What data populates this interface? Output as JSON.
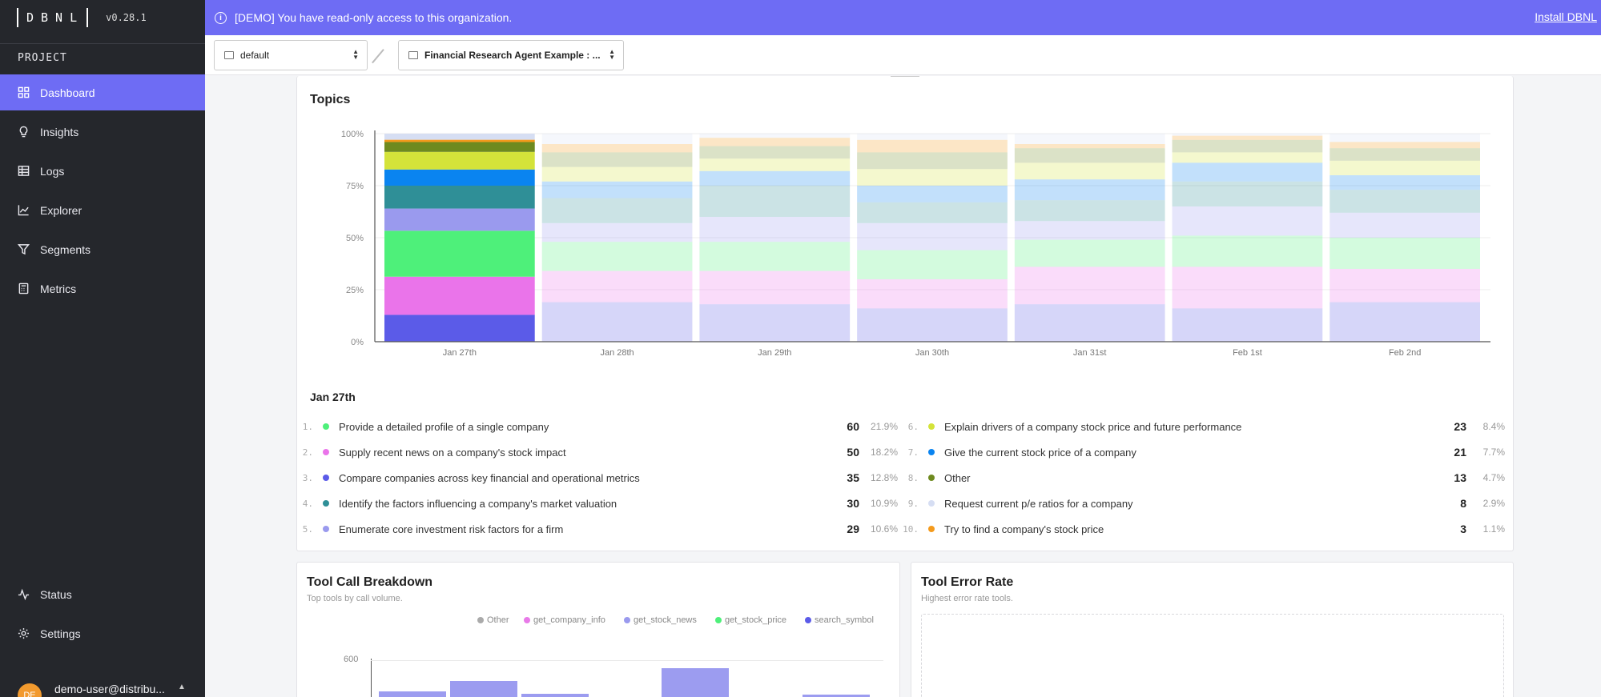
{
  "app": {
    "logo": "DBNL",
    "version": "v0.28.1"
  },
  "sidebar": {
    "section": "PROJECT",
    "items": [
      {
        "label": "Dashboard",
        "icon": "dashboard-icon",
        "active": true
      },
      {
        "label": "Insights",
        "icon": "lightbulb-icon"
      },
      {
        "label": "Logs",
        "icon": "table-icon"
      },
      {
        "label": "Explorer",
        "icon": "line-chart-icon"
      },
      {
        "label": "Segments",
        "icon": "filter-icon"
      },
      {
        "label": "Metrics",
        "icon": "calculator-icon"
      }
    ],
    "bottom": [
      {
        "label": "Status",
        "icon": "activity-icon"
      },
      {
        "label": "Settings",
        "icon": "gear-icon"
      }
    ],
    "user": {
      "initials": "DE",
      "email": "demo-user@distribu..."
    }
  },
  "banner": {
    "message": "[DEMO] You have read-only access to this organization.",
    "link": "Install DBNL"
  },
  "toolbar": {
    "namespace": "default",
    "project": "Financial Research Agent Example : ..."
  },
  "topics": {
    "title": "Topics",
    "selected_date": "Jan 27th",
    "items": [
      {
        "rank": "1.",
        "label": "Provide a detailed profile of a single company",
        "count": "60",
        "pct": "21.9%",
        "color": "#4ef07a"
      },
      {
        "rank": "2.",
        "label": "Supply recent news on a company's stock impact",
        "count": "50",
        "pct": "18.2%",
        "color": "#ea74ea"
      },
      {
        "rank": "3.",
        "label": "Compare companies across key financial and operational metrics",
        "count": "35",
        "pct": "12.8%",
        "color": "#5b5be8"
      },
      {
        "rank": "4.",
        "label": "Identify the factors influencing a company's market valuation",
        "count": "30",
        "pct": "10.9%",
        "color": "#2f8f97"
      },
      {
        "rank": "5.",
        "label": "Enumerate core investment risk factors for a firm",
        "count": "29",
        "pct": "10.6%",
        "color": "#9a9aee"
      },
      {
        "rank": "6.",
        "label": "Explain drivers of a company stock price and future performance",
        "count": "23",
        "pct": "8.4%",
        "color": "#d4e33a"
      },
      {
        "rank": "7.",
        "label": "Give the current stock price of a company",
        "count": "21",
        "pct": "7.7%",
        "color": "#0a84f0"
      },
      {
        "rank": "8.",
        "label": "Other",
        "count": "13",
        "pct": "4.7%",
        "color": "#6e8a1f"
      },
      {
        "rank": "9.",
        "label": "Request current p/e ratios for a company",
        "count": "8",
        "pct": "2.9%",
        "color": "#d6def3"
      },
      {
        "rank": "10.",
        "label": "Try to find a company's stock price",
        "count": "3",
        "pct": "1.1%",
        "color": "#f49a1c"
      }
    ]
  },
  "chart_data": {
    "type": "bar",
    "stacked": true,
    "normalized": true,
    "title": "Topics",
    "categories": [
      "Jan 27th",
      "Jan 28th",
      "Jan 29th",
      "Jan 30th",
      "Jan 31st",
      "Feb 1st",
      "Feb 2nd"
    ],
    "ylim": [
      0,
      100
    ],
    "yticks": [
      "0%",
      "25%",
      "50%",
      "75%",
      "100%"
    ],
    "highlighted_category": "Jan 27th",
    "series": [
      {
        "name": "Compare companies across key financial and operational metrics",
        "color": "#5b5be8",
        "values": [
          12.8,
          19,
          18,
          16,
          18,
          16,
          19
        ]
      },
      {
        "name": "Supply recent news on a company's stock impact",
        "color": "#ea74ea",
        "values": [
          18.2,
          15,
          16,
          14,
          18,
          20,
          16
        ]
      },
      {
        "name": "Provide a detailed profile of a single company",
        "color": "#4ef07a",
        "values": [
          21.9,
          14,
          14,
          14,
          13,
          15,
          15
        ]
      },
      {
        "name": "Enumerate core investment risk factors for a firm",
        "color": "#9a9aee",
        "values": [
          10.6,
          9,
          12,
          13,
          9,
          14,
          12
        ]
      },
      {
        "name": "Identify the factors influencing a company's market valuation",
        "color": "#2f8f97",
        "values": [
          10.9,
          12,
          15,
          10,
          10,
          12,
          11
        ]
      },
      {
        "name": "Give the current stock price of a company",
        "color": "#0a84f0",
        "values": [
          7.7,
          8,
          7,
          8,
          10,
          9,
          7
        ]
      },
      {
        "name": "Explain drivers of a company stock price and future performance",
        "color": "#d4e33a",
        "values": [
          8.4,
          7,
          6,
          8,
          8,
          5,
          7
        ]
      },
      {
        "name": "Other",
        "color": "#6e8a1f",
        "values": [
          4.7,
          7,
          6,
          8,
          7,
          6,
          6
        ]
      },
      {
        "name": "Try to find a company's stock price",
        "color": "#f49a1c",
        "values": [
          1.1,
          4,
          4,
          6,
          2,
          2,
          3
        ]
      },
      {
        "name": "Request current p/e ratios for a company",
        "color": "#d6def3",
        "values": [
          2.9,
          5,
          2,
          3,
          5,
          1,
          4
        ]
      }
    ]
  },
  "tool_calls": {
    "title": "Tool Call Breakdown",
    "subtitle": "Top tools by call volume.",
    "legend": [
      {
        "name": "Other",
        "color": "#aaaaaa"
      },
      {
        "name": "get_company_info",
        "color": "#e87ae8"
      },
      {
        "name": "get_stock_news",
        "color": "#9a9aee"
      },
      {
        "name": "get_stock_price",
        "color": "#4ef07a"
      },
      {
        "name": "search_symbol",
        "color": "#5b5be8"
      }
    ],
    "ytick_top": "600"
  },
  "tool_errors": {
    "title": "Tool Error Rate",
    "subtitle": "Highest error rate tools."
  }
}
